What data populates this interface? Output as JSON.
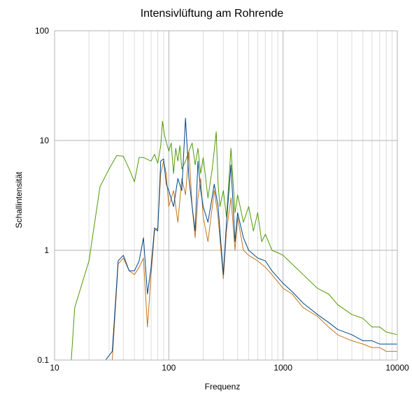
{
  "chart_data": {
    "type": "line",
    "title": "Intensivlüftung am Rohrende",
    "xlabel": "Frequenz",
    "ylabel": "Schallintensität",
    "x_scale": "log",
    "y_scale": "log",
    "xlim": [
      10,
      10000
    ],
    "ylim": [
      0.1,
      100
    ],
    "x_ticks": [
      "10",
      "100",
      "1000",
      "10000"
    ],
    "y_ticks": [
      "0.1",
      "1",
      "10",
      "100"
    ],
    "grid": true,
    "legend": "none",
    "colors": {
      "green": "#4e9a06",
      "orange": "#c5761a",
      "blue": "#004586",
      "grid_major": "#b3b3b3",
      "grid_minor": "#dddddd"
    },
    "series": [
      {
        "color": "#4e9a06",
        "points": [
          [
            14,
            0.1
          ],
          [
            15,
            0.3
          ],
          [
            20,
            0.8
          ],
          [
            25,
            3.8
          ],
          [
            30,
            5.5
          ],
          [
            35,
            7.3
          ],
          [
            40,
            7.2
          ],
          [
            45,
            5.5
          ],
          [
            50,
            4.2
          ],
          [
            55,
            7.0
          ],
          [
            60,
            7.0
          ],
          [
            70,
            6.5
          ],
          [
            75,
            7.5
          ],
          [
            80,
            6.2
          ],
          [
            85,
            9.0
          ],
          [
            88,
            15.0
          ],
          [
            92,
            11.0
          ],
          [
            100,
            8.0
          ],
          [
            105,
            9.5
          ],
          [
            110,
            5.0
          ],
          [
            115,
            8.5
          ],
          [
            120,
            6.5
          ],
          [
            125,
            9.0
          ],
          [
            130,
            5.5
          ],
          [
            140,
            6.5
          ],
          [
            150,
            8.0
          ],
          [
            160,
            9.5
          ],
          [
            170,
            6.0
          ],
          [
            180,
            8.5
          ],
          [
            190,
            5.0
          ],
          [
            200,
            7.0
          ],
          [
            220,
            3.0
          ],
          [
            240,
            5.5
          ],
          [
            260,
            12.0
          ],
          [
            270,
            4.0
          ],
          [
            280,
            2.5
          ],
          [
            300,
            3.5
          ],
          [
            320,
            2.0
          ],
          [
            350,
            8.5
          ],
          [
            380,
            2.2
          ],
          [
            400,
            3.2
          ],
          [
            450,
            1.8
          ],
          [
            500,
            2.5
          ],
          [
            550,
            1.5
          ],
          [
            600,
            2.2
          ],
          [
            650,
            1.2
          ],
          [
            700,
            1.4
          ],
          [
            800,
            1.0
          ],
          [
            900,
            0.95
          ],
          [
            1000,
            0.9
          ],
          [
            1200,
            0.75
          ],
          [
            1500,
            0.6
          ],
          [
            2000,
            0.45
          ],
          [
            2500,
            0.4
          ],
          [
            3000,
            0.32
          ],
          [
            4000,
            0.26
          ],
          [
            5000,
            0.24
          ],
          [
            6000,
            0.2
          ],
          [
            7000,
            0.2
          ],
          [
            8000,
            0.18
          ],
          [
            10000,
            0.17
          ]
        ]
      },
      {
        "color": "#c5761a",
        "points": [
          [
            28,
            0.1
          ],
          [
            32,
            0.1
          ],
          [
            36,
            0.75
          ],
          [
            40,
            0.85
          ],
          [
            45,
            0.65
          ],
          [
            50,
            0.6
          ],
          [
            55,
            0.7
          ],
          [
            60,
            0.85
          ],
          [
            65,
            0.2
          ],
          [
            70,
            0.6
          ],
          [
            75,
            1.5
          ],
          [
            80,
            1.6
          ],
          [
            85,
            5.0
          ],
          [
            90,
            6.5
          ],
          [
            95,
            5.0
          ],
          [
            100,
            2.5
          ],
          [
            110,
            3.5
          ],
          [
            120,
            1.8
          ],
          [
            130,
            4.5
          ],
          [
            140,
            3.2
          ],
          [
            150,
            8.0
          ],
          [
            160,
            2.5
          ],
          [
            170,
            1.3
          ],
          [
            180,
            3.0
          ],
          [
            190,
            4.5
          ],
          [
            200,
            2.0
          ],
          [
            220,
            1.2
          ],
          [
            250,
            3.5
          ],
          [
            270,
            2.0
          ],
          [
            300,
            0.55
          ],
          [
            320,
            1.5
          ],
          [
            350,
            3.0
          ],
          [
            380,
            1.0
          ],
          [
            400,
            2.0
          ],
          [
            450,
            1.0
          ],
          [
            500,
            0.9
          ],
          [
            600,
            0.8
          ],
          [
            700,
            0.7
          ],
          [
            800,
            0.6
          ],
          [
            1000,
            0.45
          ],
          [
            1200,
            0.4
          ],
          [
            1500,
            0.3
          ],
          [
            2000,
            0.25
          ],
          [
            2500,
            0.2
          ],
          [
            3000,
            0.17
          ],
          [
            4000,
            0.15
          ],
          [
            5000,
            0.14
          ],
          [
            6000,
            0.13
          ],
          [
            7000,
            0.13
          ],
          [
            8000,
            0.12
          ],
          [
            10000,
            0.12
          ]
        ]
      },
      {
        "color": "#004586",
        "points": [
          [
            28,
            0.1
          ],
          [
            32,
            0.12
          ],
          [
            36,
            0.8
          ],
          [
            40,
            0.9
          ],
          [
            45,
            0.65
          ],
          [
            50,
            0.65
          ],
          [
            55,
            0.8
          ],
          [
            60,
            1.3
          ],
          [
            65,
            0.4
          ],
          [
            70,
            0.7
          ],
          [
            75,
            1.6
          ],
          [
            80,
            1.5
          ],
          [
            85,
            6.5
          ],
          [
            90,
            6.8
          ],
          [
            95,
            4.0
          ],
          [
            100,
            3.5
          ],
          [
            110,
            2.5
          ],
          [
            120,
            4.5
          ],
          [
            130,
            3.5
          ],
          [
            140,
            16.0
          ],
          [
            150,
            4.5
          ],
          [
            160,
            2.5
          ],
          [
            170,
            1.5
          ],
          [
            180,
            6.5
          ],
          [
            190,
            3.5
          ],
          [
            200,
            2.5
          ],
          [
            220,
            1.8
          ],
          [
            250,
            4.0
          ],
          [
            270,
            2.5
          ],
          [
            300,
            0.6
          ],
          [
            320,
            1.8
          ],
          [
            350,
            6.0
          ],
          [
            380,
            1.2
          ],
          [
            400,
            2.2
          ],
          [
            450,
            1.3
          ],
          [
            500,
            1.0
          ],
          [
            600,
            0.85
          ],
          [
            700,
            0.8
          ],
          [
            800,
            0.65
          ],
          [
            1000,
            0.5
          ],
          [
            1200,
            0.42
          ],
          [
            1500,
            0.33
          ],
          [
            2000,
            0.26
          ],
          [
            2500,
            0.22
          ],
          [
            3000,
            0.19
          ],
          [
            4000,
            0.17
          ],
          [
            5000,
            0.15
          ],
          [
            6000,
            0.15
          ],
          [
            7000,
            0.14
          ],
          [
            8000,
            0.14
          ],
          [
            10000,
            0.14
          ]
        ]
      }
    ]
  }
}
